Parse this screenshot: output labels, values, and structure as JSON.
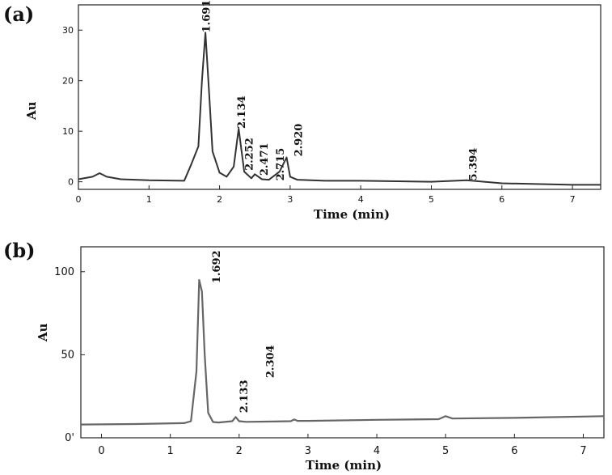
{
  "chart_data": [
    {
      "panel": "(a)",
      "type": "line",
      "xlabel": "Time (min)",
      "ylabel": "Au",
      "xlim": [
        0,
        7.4
      ],
      "ylim": [
        -1.5,
        35
      ],
      "xticks": [
        0,
        1,
        2,
        3,
        4,
        5,
        6,
        7
      ],
      "yticks": [
        0,
        10,
        20,
        30
      ],
      "series": [
        {
          "x": [
            0,
            0.2,
            0.3,
            0.4,
            0.6,
            1.0,
            1.5,
            1.6,
            1.7,
            1.75,
            1.8,
            1.85,
            1.9,
            2.0,
            2.1,
            2.2,
            2.27,
            2.35,
            2.45,
            2.5,
            2.6,
            2.7,
            2.85,
            2.95,
            3.0,
            3.1,
            3.5,
            4.0,
            5.0,
            5.5,
            6.0,
            7.0,
            7.4
          ],
          "y": [
            0.5,
            1.0,
            1.7,
            1.0,
            0.5,
            0.3,
            0.2,
            3.5,
            7.0,
            20.0,
            29.5,
            18.0,
            6.0,
            1.8,
            1.0,
            3.0,
            10.5,
            2.0,
            0.7,
            1.5,
            0.5,
            0.4,
            2.0,
            4.8,
            1.0,
            0.4,
            0.2,
            0.2,
            0.0,
            0.3,
            -0.3,
            -0.6,
            -0.6
          ]
        }
      ],
      "annotations": [
        {
          "text": "1.691",
          "x": 1.86,
          "y": 29.5
        },
        {
          "text": "2.134",
          "x": 2.36,
          "y": 10.5
        },
        {
          "text": "2.252",
          "x": 2.47,
          "y": 2.2
        },
        {
          "text": "2.471",
          "x": 2.68,
          "y": 1.2
        },
        {
          "text": "2.715",
          "x": 2.91,
          "y": 0.2
        },
        {
          "text": "2.920",
          "x": 3.17,
          "y": 5.0
        },
        {
          "text": "5.394",
          "x": 5.64,
          "y": 0.2
        }
      ]
    },
    {
      "panel": "(b)",
      "type": "line",
      "xlabel": "Time (min)",
      "ylabel": "Au",
      "xlim": [
        -0.3,
        7.3
      ],
      "ylim": [
        0,
        115
      ],
      "xticks": [
        0,
        1,
        2,
        3,
        4,
        5,
        6,
        7
      ],
      "yticks": [
        0,
        50,
        100
      ],
      "ytick_labels": [
        "0'",
        "50",
        "100"
      ],
      "series": [
        {
          "x": [
            -0.3,
            0.5,
            1.2,
            1.3,
            1.38,
            1.42,
            1.46,
            1.5,
            1.55,
            1.62,
            1.7,
            1.9,
            1.95,
            2.0,
            2.1,
            2.5,
            2.75,
            2.8,
            2.85,
            3.0,
            4.0,
            4.9,
            5.0,
            5.1,
            6.0,
            7.3
          ],
          "y": [
            8.0,
            8.3,
            8.8,
            10.0,
            40.0,
            95.0,
            88.0,
            50.0,
            15.0,
            9.5,
            9.2,
            10.0,
            12.5,
            10.0,
            9.6,
            9.8,
            10.0,
            11.0,
            10.2,
            10.2,
            10.8,
            11.2,
            13.0,
            11.6,
            12.0,
            13.0
          ]
        }
      ],
      "annotations": [
        {
          "text": "1.692",
          "x": 1.72,
          "y": 93
        },
        {
          "text": "2.133",
          "x": 2.12,
          "y": 15
        },
        {
          "text": "2.304",
          "x": 2.5,
          "y": 36
        }
      ]
    }
  ],
  "figure": {
    "panel_a_label": "(a)",
    "panel_b_label": "(b)"
  }
}
